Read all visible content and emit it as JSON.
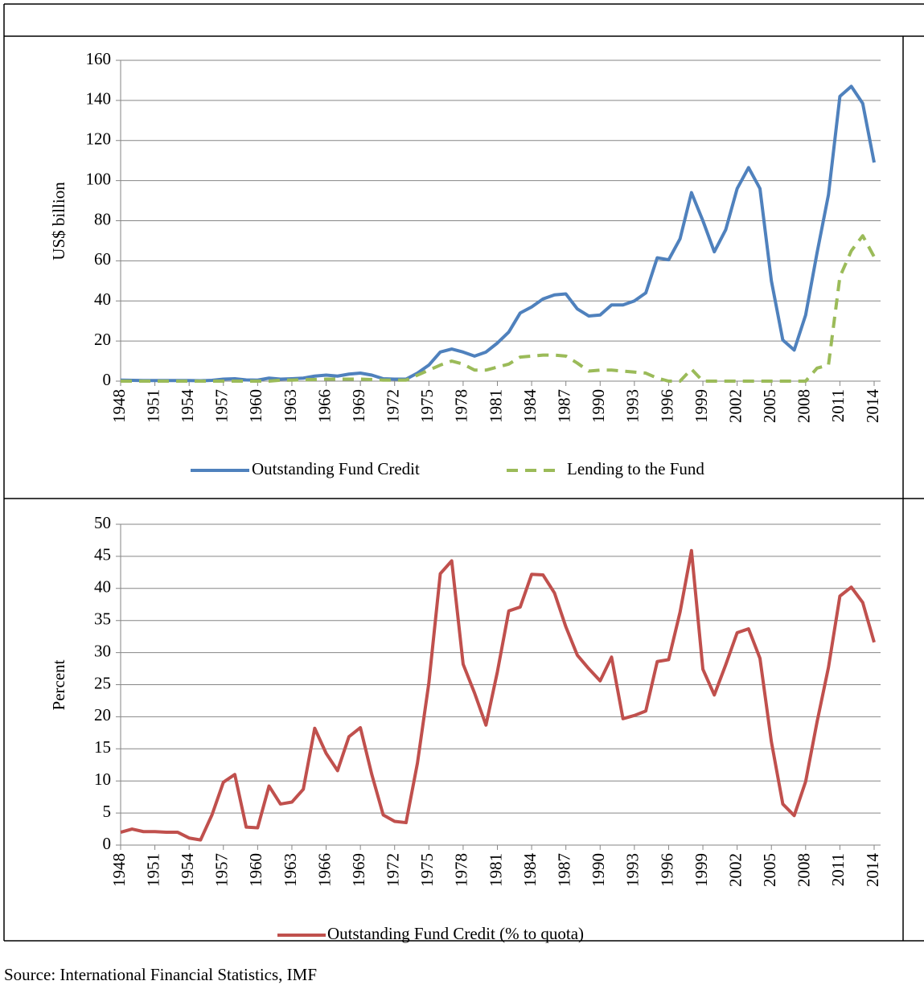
{
  "chart_data": [
    {
      "type": "line",
      "ylabel": "US$ billion",
      "x": [
        1948,
        1949,
        1950,
        1951,
        1952,
        1953,
        1954,
        1955,
        1956,
        1957,
        1958,
        1959,
        1960,
        1961,
        1962,
        1963,
        1964,
        1965,
        1966,
        1967,
        1968,
        1969,
        1970,
        1971,
        1972,
        1973,
        1974,
        1975,
        1976,
        1977,
        1978,
        1979,
        1980,
        1981,
        1982,
        1983,
        1984,
        1985,
        1986,
        1987,
        1988,
        1989,
        1990,
        1991,
        1992,
        1993,
        1994,
        1995,
        1996,
        1997,
        1998,
        1999,
        2000,
        2001,
        2002,
        2003,
        2004,
        2005,
        2006,
        2007,
        2008,
        2009,
        2010,
        2011,
        2012,
        2013,
        2014
      ],
      "series": [
        {
          "name": "Outstanding Fund Credit",
          "color": "#4f81bd",
          "dashed": false,
          "values": [
            0.5,
            0.4,
            0.3,
            0.3,
            0.3,
            0.3,
            0.3,
            0.2,
            0.4,
            1.0,
            1.2,
            0.6,
            0.5,
            1.5,
            1.0,
            1.2,
            1.5,
            2.5,
            3.0,
            2.5,
            3.5,
            4.0,
            3.0,
            1.2,
            1.0,
            1.0,
            4,
            8,
            14.5,
            16,
            14.5,
            12.5,
            14.5,
            19,
            24.5,
            34,
            37,
            41,
            43,
            43.5,
            36,
            32.5,
            33,
            38,
            38,
            40,
            44,
            61.5,
            60.5,
            71,
            94,
            80,
            64.5,
            75.5,
            96,
            106.5,
            96,
            50,
            20.5,
            15.5,
            33,
            64,
            93,
            142,
            147,
            138.5,
            109
          ]
        },
        {
          "name": "Lending to the Fund",
          "color": "#9bbb59",
          "dashed": true,
          "values": [
            0,
            0,
            0,
            0,
            0,
            0,
            0,
            0,
            0,
            0,
            0,
            0,
            0,
            0,
            0.5,
            0.5,
            0.7,
            0.8,
            1.0,
            1.0,
            1.0,
            1.0,
            0.8,
            0.5,
            0.5,
            0.5,
            3,
            5.5,
            8,
            10,
            8.5,
            5.5,
            5.5,
            7,
            8.5,
            12,
            12.5,
            13,
            13,
            12.5,
            9,
            5,
            5.5,
            5.5,
            5,
            4.5,
            4,
            1.5,
            0,
            0,
            6,
            0,
            0,
            0,
            0,
            0,
            0,
            0,
            0,
            0,
            0,
            6.5,
            8,
            52,
            65,
            72.5,
            62
          ]
        }
      ],
      "xlim": [
        1948,
        2014
      ],
      "xticks": [
        1948,
        1951,
        1954,
        1957,
        1960,
        1963,
        1966,
        1969,
        1972,
        1975,
        1978,
        1981,
        1984,
        1987,
        1990,
        1993,
        1996,
        1999,
        2002,
        2005,
        2008,
        2011,
        2014
      ],
      "ylim": [
        0,
        160
      ],
      "yticks": [
        0,
        20,
        40,
        60,
        80,
        100,
        120,
        140,
        160
      ],
      "grid": true,
      "legend": "bottom"
    },
    {
      "type": "line",
      "ylabel": "Percent",
      "x": [
        1948,
        1949,
        1950,
        1951,
        1952,
        1953,
        1954,
        1955,
        1956,
        1957,
        1958,
        1959,
        1960,
        1961,
        1962,
        1963,
        1964,
        1965,
        1966,
        1967,
        1968,
        1969,
        1970,
        1971,
        1972,
        1973,
        1974,
        1975,
        1976,
        1977,
        1978,
        1979,
        1980,
        1981,
        1982,
        1983,
        1984,
        1985,
        1986,
        1987,
        1988,
        1989,
        1990,
        1991,
        1992,
        1993,
        1994,
        1995,
        1996,
        1997,
        1998,
        1999,
        2000,
        2001,
        2002,
        2003,
        2004,
        2005,
        2006,
        2007,
        2008,
        2009,
        2010,
        2011,
        2012,
        2013,
        2014
      ],
      "series": [
        {
          "name": "Outstanding Fund Credit (% to quota)",
          "color": "#c0504d",
          "dashed": false,
          "values": [
            2,
            2.5,
            2.1,
            2.1,
            2,
            2,
            1.1,
            0.8,
            4.7,
            9.8,
            11,
            2.8,
            2.7,
            9.2,
            6.4,
            6.7,
            8.7,
            18.2,
            14.3,
            11.6,
            16.9,
            18.3,
            11,
            4.7,
            3.7,
            3.5,
            12.8,
            25.3,
            42.3,
            44.3,
            28.2,
            23.7,
            18.7,
            27,
            36.5,
            37.1,
            42.2,
            42.1,
            39.3,
            34,
            29.6,
            27.5,
            25.6,
            29.3,
            19.7,
            20.2,
            20.9,
            28.6,
            28.9,
            36.3,
            45.9,
            27.4,
            23.4,
            28.1,
            33.1,
            33.7,
            29.1,
            16.1,
            6.4,
            4.6,
            9.9,
            19.2,
            27.7,
            38.8,
            40.2,
            37.8,
            31.6
          ]
        }
      ],
      "xlim": [
        1948,
        2014
      ],
      "xticks": [
        1948,
        1951,
        1954,
        1957,
        1960,
        1963,
        1966,
        1969,
        1972,
        1975,
        1978,
        1981,
        1984,
        1987,
        1990,
        1993,
        1996,
        1999,
        2002,
        2005,
        2008,
        2011,
        2014
      ],
      "ylim": [
        0,
        50
      ],
      "yticks": [
        0,
        5,
        10,
        15,
        20,
        25,
        30,
        35,
        40,
        45,
        50
      ],
      "grid": true,
      "legend": "bottom"
    }
  ],
  "source": "Source: International Financial Statistics, IMF"
}
